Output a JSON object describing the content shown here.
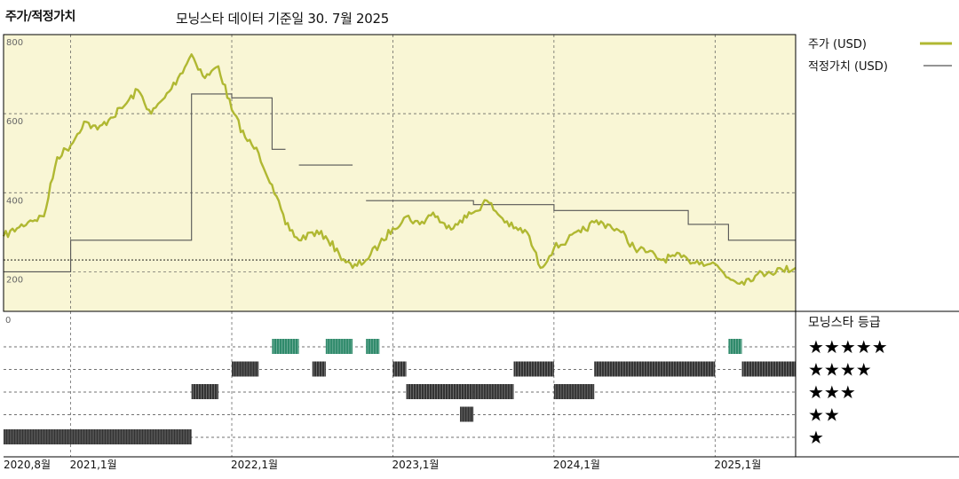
{
  "header": {
    "title": "주가/적정가치",
    "subtitle": "모닝스타 데이터 기준일 30. 7월 2025"
  },
  "colors": {
    "price": "#b0b832",
    "fair": "#555555",
    "panel_bg": "#f9f6d5",
    "five_star": "#2f8a6b",
    "bars": "#333333"
  },
  "legend": {
    "price_label": "주가 (USD)",
    "fair_label": "적정가치 (USD)"
  },
  "rating_panel": {
    "title": "모닝스타 등급",
    "rows": [
      "★★★★★",
      "★★★★",
      "★★★",
      "★★",
      "★"
    ],
    "zero_label": "0"
  },
  "chart_data": {
    "type": "line",
    "x_start": "2020-08",
    "x_end": "2025-07",
    "x_ticks": [
      {
        "date": "2020-08",
        "label": "2020,8월"
      },
      {
        "date": "2021-01",
        "label": "2021,1월"
      },
      {
        "date": "2022-01",
        "label": "2022,1월"
      },
      {
        "date": "2023-01",
        "label": "2023,1월"
      },
      {
        "date": "2024-01",
        "label": "2024,1월"
      },
      {
        "date": "2025-01",
        "label": "2025,1월"
      }
    ],
    "ylim": [
      100,
      800
    ],
    "y_ticks": [
      800,
      600,
      400,
      200
    ],
    "reference_line": 230,
    "series": [
      {
        "name": "주가 (USD)",
        "points": [
          [
            "2020-08",
            290
          ],
          [
            "2020-09",
            310
          ],
          [
            "2020-10",
            330
          ],
          [
            "2020-11",
            340
          ],
          [
            "2020-12",
            490
          ],
          [
            "2021-01",
            520
          ],
          [
            "2021-02",
            580
          ],
          [
            "2021-03",
            560
          ],
          [
            "2021-04",
            590
          ],
          [
            "2021-05",
            620
          ],
          [
            "2021-06",
            660
          ],
          [
            "2021-07",
            600
          ],
          [
            "2021-08",
            640
          ],
          [
            "2021-09",
            690
          ],
          [
            "2021-10",
            750
          ],
          [
            "2021-11",
            690
          ],
          [
            "2021-12",
            720
          ],
          [
            "2022-01",
            610
          ],
          [
            "2022-02",
            540
          ],
          [
            "2022-03",
            500
          ],
          [
            "2022-04",
            420
          ],
          [
            "2022-05",
            320
          ],
          [
            "2022-06",
            280
          ],
          [
            "2022-07",
            300
          ],
          [
            "2022-08",
            290
          ],
          [
            "2022-09",
            245
          ],
          [
            "2022-10",
            210
          ],
          [
            "2022-11",
            230
          ],
          [
            "2022-12",
            270
          ],
          [
            "2023-01",
            310
          ],
          [
            "2023-02",
            340
          ],
          [
            "2023-03",
            320
          ],
          [
            "2023-04",
            350
          ],
          [
            "2023-05",
            310
          ],
          [
            "2023-06",
            330
          ],
          [
            "2023-07",
            350
          ],
          [
            "2023-08",
            380
          ],
          [
            "2023-09",
            340
          ],
          [
            "2023-10",
            310
          ],
          [
            "2023-11",
            300
          ],
          [
            "2023-12",
            210
          ],
          [
            "2024-01",
            260
          ],
          [
            "2024-02",
            280
          ],
          [
            "2024-03",
            300
          ],
          [
            "2024-04",
            325
          ],
          [
            "2024-05",
            320
          ],
          [
            "2024-06",
            300
          ],
          [
            "2024-07",
            260
          ],
          [
            "2024-08",
            250
          ],
          [
            "2024-09",
            230
          ],
          [
            "2024-10",
            240
          ],
          [
            "2024-11",
            230
          ],
          [
            "2024-12",
            225
          ],
          [
            "2025-01",
            220
          ],
          [
            "2025-02",
            185
          ],
          [
            "2025-03",
            175
          ],
          [
            "2025-04",
            190
          ],
          [
            "2025-05",
            200
          ],
          [
            "2025-06",
            205
          ],
          [
            "2025-07",
            210
          ]
        ]
      },
      {
        "name": "적정가치 (USD)",
        "segments": [
          [
            [
              "2020-08",
              200
            ],
            [
              "2021-01",
              200
            ],
            [
              "2021-01",
              280
            ],
            [
              "2021-10",
              280
            ],
            [
              "2021-10",
              650
            ],
            [
              "2022-01",
              650
            ],
            [
              "2022-01",
              640
            ],
            [
              "2022-04",
              640
            ],
            [
              "2022-04",
              510
            ],
            [
              "2022-05",
              510
            ]
          ],
          [
            [
              "2022-06",
              470
            ],
            [
              "2022-10",
              470
            ]
          ],
          [
            [
              "2022-11",
              380
            ],
            [
              "2023-07",
              380
            ],
            [
              "2023-07",
              370
            ],
            [
              "2024-01",
              370
            ],
            [
              "2024-01",
              355
            ],
            [
              "2024-11",
              355
            ],
            [
              "2024-11",
              320
            ],
            [
              "2025-02",
              320
            ],
            [
              "2025-02",
              280
            ],
            [
              "2025-07",
              280
            ]
          ]
        ]
      }
    ],
    "ratings": [
      {
        "stars": 1,
        "from": "2020-08",
        "to": "2021-10"
      },
      {
        "stars": 3,
        "from": "2021-10",
        "to": "2021-12"
      },
      {
        "stars": 4,
        "from": "2022-01",
        "to": "2022-03"
      },
      {
        "stars": 5,
        "from": "2022-04",
        "to": "2022-06"
      },
      {
        "stars": 4,
        "from": "2022-07",
        "to": "2022-08"
      },
      {
        "stars": 5,
        "from": "2022-08",
        "to": "2022-10"
      },
      {
        "stars": 5,
        "from": "2022-11",
        "to": "2022-12"
      },
      {
        "stars": 4,
        "from": "2023-01",
        "to": "2023-02"
      },
      {
        "stars": 3,
        "from": "2023-02",
        "to": "2023-07"
      },
      {
        "stars": 2,
        "from": "2023-06",
        "to": "2023-07"
      },
      {
        "stars": 3,
        "from": "2023-07",
        "to": "2023-10"
      },
      {
        "stars": 4,
        "from": "2023-10",
        "to": "2024-01"
      },
      {
        "stars": 3,
        "from": "2024-01",
        "to": "2024-04"
      },
      {
        "stars": 4,
        "from": "2024-04",
        "to": "2025-01"
      },
      {
        "stars": 5,
        "from": "2025-02",
        "to": "2025-03"
      },
      {
        "stars": 4,
        "from": "2025-03",
        "to": "2025-07"
      }
    ]
  }
}
